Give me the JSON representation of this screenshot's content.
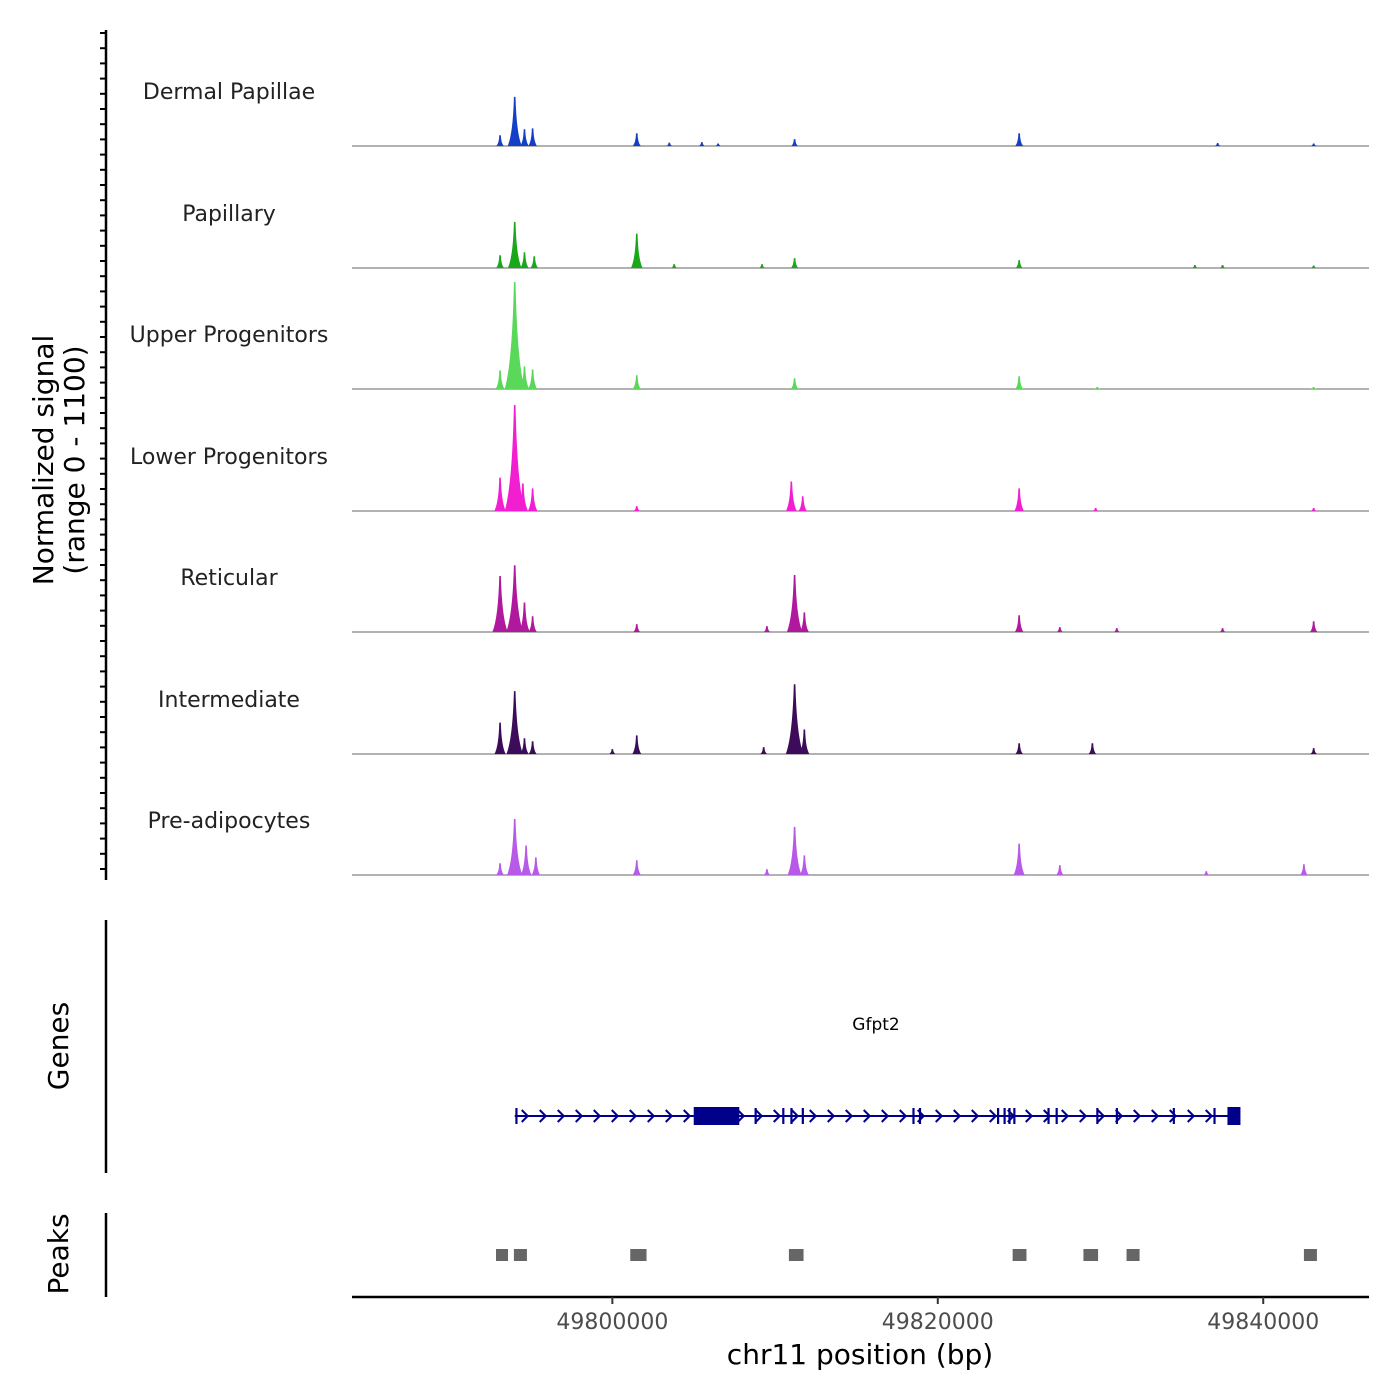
{
  "chart_data": {
    "type": "area",
    "title": "",
    "ylabel_lines": [
      "Normalized signal",
      "(range 0 - 1100)"
    ],
    "ylim": [
      0,
      1100
    ],
    "xlabel": "chr11 position (bp)",
    "xlim": [
      49784000,
      49846500
    ],
    "x_ticks": [
      49800000,
      49820000,
      49840000
    ],
    "x_tick_labels": [
      "49800000",
      "49820000",
      "49840000"
    ],
    "track_labels": {
      "genes": "Genes",
      "peaks": "Peaks"
    },
    "series": [
      {
        "name": "Dermal Papillae",
        "color": "#1440c8",
        "peaks": [
          [
            49793100,
            110
          ],
          [
            49794000,
            500
          ],
          [
            49794600,
            170
          ],
          [
            49795100,
            180
          ],
          [
            49801500,
            130
          ],
          [
            49803500,
            35
          ],
          [
            49805500,
            40
          ],
          [
            49806500,
            25
          ],
          [
            49811200,
            70
          ],
          [
            49825000,
            130
          ],
          [
            49837200,
            30
          ],
          [
            49843100,
            25
          ]
        ]
      },
      {
        "name": "Papillary",
        "color": "#18a81a",
        "peaks": [
          [
            49793100,
            130
          ],
          [
            49794000,
            470
          ],
          [
            49794600,
            160
          ],
          [
            49795200,
            120
          ],
          [
            49801500,
            350
          ],
          [
            49803800,
            40
          ],
          [
            49809200,
            40
          ],
          [
            49811200,
            100
          ],
          [
            49825000,
            80
          ],
          [
            49835800,
            30
          ],
          [
            49837500,
            30
          ],
          [
            49843100,
            25
          ]
        ]
      },
      {
        "name": "Upper Progenitors",
        "color": "#5ad85a",
        "peaks": [
          [
            49793100,
            190
          ],
          [
            49794000,
            1090
          ],
          [
            49794600,
            230
          ],
          [
            49795100,
            200
          ],
          [
            49801500,
            140
          ],
          [
            49811200,
            110
          ],
          [
            49825000,
            130
          ],
          [
            49829800,
            20
          ],
          [
            49843100,
            20
          ]
        ]
      },
      {
        "name": "Lower Progenitors",
        "color": "#f21ed2",
        "peaks": [
          [
            49793100,
            340
          ],
          [
            49794000,
            1080
          ],
          [
            49794500,
            280
          ],
          [
            49795100,
            230
          ],
          [
            49801500,
            50
          ],
          [
            49811000,
            300
          ],
          [
            49811700,
            150
          ],
          [
            49825000,
            230
          ],
          [
            49829700,
            30
          ],
          [
            49843100,
            30
          ]
        ]
      },
      {
        "name": "Reticular",
        "color": "#b0189e",
        "peaks": [
          [
            49793100,
            570
          ],
          [
            49794000,
            680
          ],
          [
            49794600,
            300
          ],
          [
            49795100,
            160
          ],
          [
            49801500,
            80
          ],
          [
            49809500,
            60
          ],
          [
            49811200,
            580
          ],
          [
            49811800,
            200
          ],
          [
            49825000,
            170
          ],
          [
            49827500,
            50
          ],
          [
            49831000,
            40
          ],
          [
            49837500,
            40
          ],
          [
            49843100,
            110
          ]
        ]
      },
      {
        "name": "Intermediate",
        "color": "#3c0c5a",
        "peaks": [
          [
            49793100,
            320
          ],
          [
            49794000,
            640
          ],
          [
            49794600,
            160
          ],
          [
            49795100,
            130
          ],
          [
            49801500,
            190
          ],
          [
            49800000,
            50
          ],
          [
            49809300,
            70
          ],
          [
            49811200,
            710
          ],
          [
            49811800,
            250
          ],
          [
            49825000,
            110
          ],
          [
            49829500,
            110
          ],
          [
            49843100,
            60
          ]
        ]
      },
      {
        "name": "Pre-adipocytes",
        "color": "#b85ae8",
        "peaks": [
          [
            49793100,
            120
          ],
          [
            49794000,
            570
          ],
          [
            49794700,
            300
          ],
          [
            49795300,
            180
          ],
          [
            49801500,
            150
          ],
          [
            49809500,
            60
          ],
          [
            49811200,
            490
          ],
          [
            49811800,
            200
          ],
          [
            49825000,
            320
          ],
          [
            49827500,
            100
          ],
          [
            49836500,
            40
          ],
          [
            49842500,
            110
          ]
        ]
      }
    ],
    "genes": [
      {
        "name": "Gfpt2",
        "start": 49794000,
        "end": 49838300,
        "strand": "+",
        "thick_blocks": [
          [
            49805000,
            49807800
          ],
          [
            49837800,
            49838600
          ]
        ],
        "exon_marks": [
          49794100,
          49805300,
          49808800,
          49810500,
          49811000,
          49811700,
          49818500,
          49818900,
          49823700,
          49824100,
          49824400,
          49824700,
          49826800,
          49827300,
          49829800,
          49831000,
          49834500,
          49837000
        ]
      }
    ],
    "peaks_track": [
      [
        49792850,
        49793550
      ],
      [
        49793950,
        49794750
      ],
      [
        49801100,
        49802100
      ],
      [
        49810850,
        49811750
      ],
      [
        49824600,
        49825450
      ],
      [
        49828950,
        49829850
      ],
      [
        49831600,
        49832400
      ],
      [
        49842500,
        49843300
      ]
    ]
  }
}
